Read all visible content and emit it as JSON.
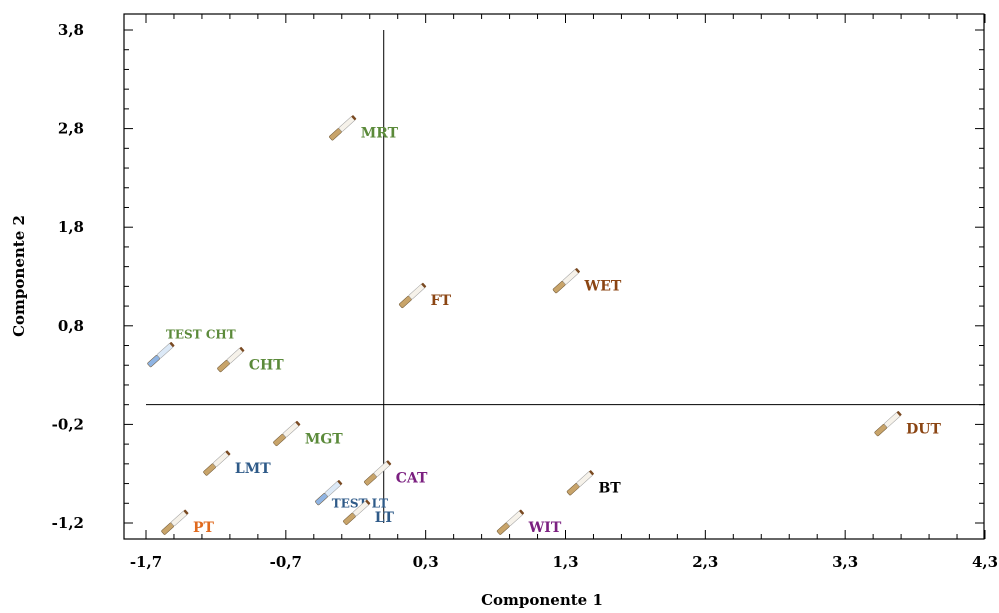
{
  "chart_data": {
    "type": "scatter",
    "xlabel": "Componente 1",
    "ylabel": "Componente 2",
    "xlim": [
      -1.7,
      4.3
    ],
    "ylim": [
      -1.2,
      3.8
    ],
    "x_ticks": [
      "-1,7",
      "-0,7",
      "0,3",
      "1,3",
      "2,3",
      "3,3",
      "4,3"
    ],
    "y_ticks": [
      "3,8",
      "2,8",
      "1,8",
      "0,8",
      "-0,2",
      "-1,2"
    ],
    "x_tick_values": [
      -1.7,
      -0.7,
      0.3,
      1.3,
      2.3,
      3.3,
      4.3
    ],
    "y_tick_values": [
      3.8,
      2.8,
      1.8,
      0.8,
      -0.2,
      -1.2
    ],
    "reference_lines": {
      "vertical_x": 0.0,
      "horizontal_y": 0.0
    },
    "marker": "cigarette-icon",
    "colors": {
      "green": "#5b8a3a",
      "brown": "#8b4513",
      "blue": "#2e5a88",
      "purple": "#7b2080",
      "orange": "#e06a1e",
      "black": "#000000",
      "marker_tan": "#c8a46a",
      "marker_test": "#8fb4e3"
    },
    "points": [
      {
        "label": "MRT",
        "x": -0.3,
        "y": 2.8,
        "color": "#5b8a3a",
        "test": false
      },
      {
        "label": "FT",
        "x": 0.2,
        "y": 1.1,
        "color": "#8b4513",
        "test": false
      },
      {
        "label": "WET",
        "x": 1.3,
        "y": 1.25,
        "color": "#8b4513",
        "test": false
      },
      {
        "label": "TEST CHT",
        "x": -1.6,
        "y": 0.5,
        "color": "#5b8a3a",
        "test": true
      },
      {
        "label": "CHT",
        "x": -1.1,
        "y": 0.45,
        "color": "#5b8a3a",
        "test": false
      },
      {
        "label": "MGT",
        "x": -0.7,
        "y": -0.3,
        "color": "#5b8a3a",
        "test": false
      },
      {
        "label": "DUT",
        "x": 3.6,
        "y": -0.2,
        "color": "#8b4513",
        "test": false
      },
      {
        "label": "CAT",
        "x": -0.05,
        "y": -0.7,
        "color": "#7b2080",
        "test": false
      },
      {
        "label": "LMT",
        "x": -1.2,
        "y": -0.6,
        "color": "#2e5a88",
        "test": false
      },
      {
        "label": "BT",
        "x": 1.4,
        "y": -0.8,
        "color": "#000000",
        "test": false
      },
      {
        "label": "TEST LT",
        "x": -0.4,
        "y": -0.9,
        "color": "#2e5a88",
        "test": true
      },
      {
        "label": "LT",
        "x": -0.2,
        "y": -1.1,
        "color": "#2e5a88",
        "test": false
      },
      {
        "label": "WIT",
        "x": 0.9,
        "y": -1.2,
        "color": "#7b2080",
        "test": false
      },
      {
        "label": "PT",
        "x": -1.5,
        "y": -1.2,
        "color": "#e06a1e",
        "test": false
      }
    ]
  }
}
